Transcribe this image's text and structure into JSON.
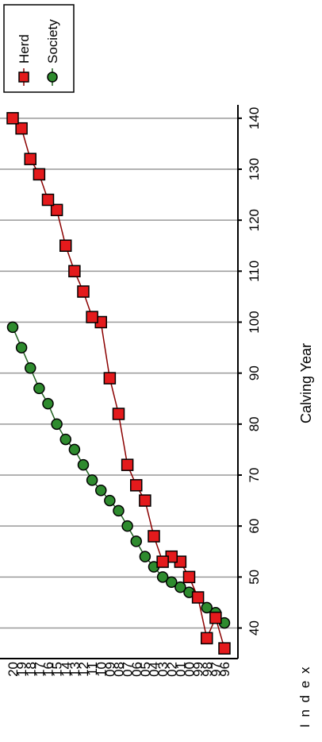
{
  "chart_data": {
    "type": "line",
    "xlabel": "Calving Year",
    "ylabel": "I n d e x",
    "categories": [
      "96",
      "97",
      "98",
      "99",
      "00",
      "01",
      "02",
      "03",
      "04",
      "05",
      "06",
      "07",
      "08",
      "09",
      "10",
      "11",
      "12",
      "13",
      "14",
      "15",
      "16",
      "17",
      "18",
      "19",
      "20"
    ],
    "yticks": [
      40,
      50,
      60,
      70,
      80,
      90,
      100,
      110,
      120,
      130,
      140
    ],
    "ylim": [
      34,
      142
    ],
    "grid": true,
    "legend_position": "top-right",
    "series": [
      {
        "name": "Herd",
        "marker": "square",
        "color": "#e41a1c",
        "values": [
          36,
          42,
          38,
          46,
          50,
          53,
          54,
          53,
          58,
          65,
          68,
          72,
          82,
          89,
          100,
          101,
          106,
          110,
          115,
          122,
          124,
          129,
          132,
          138,
          140
        ]
      },
      {
        "name": "Society",
        "marker": "circle",
        "color": "#2e8b2e",
        "values": [
          41,
          43,
          44,
          46,
          47,
          48,
          49,
          50,
          52,
          54,
          57,
          60,
          63,
          65,
          67,
          69,
          72,
          75,
          77,
          80,
          84,
          87,
          91,
          95,
          99
        ]
      }
    ]
  }
}
